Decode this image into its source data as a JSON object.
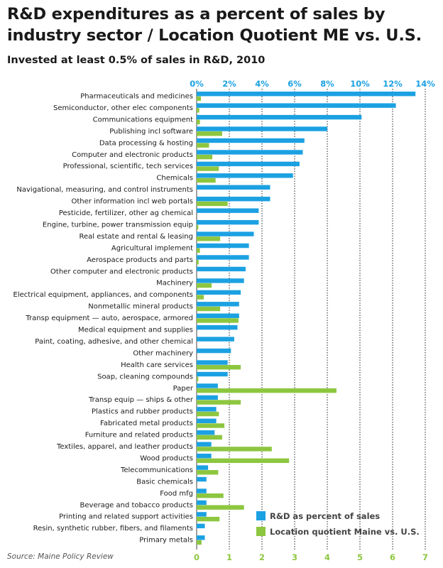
{
  "title": "R&D expenditures as a percent of sales by industry sector / Location Quotient ME vs. U.S.",
  "subtitle": "Invested at least 0.5% of sales in R&D, 2010",
  "source": "Source: Maine Policy Review",
  "colors": {
    "rd": "#1ba1e2",
    "lq": "#8dc63f",
    "top_axis": "#1ba1e2",
    "bottom_axis": "#8dc63f",
    "grid": "#222222"
  },
  "chart_data": {
    "type": "bar",
    "orientation": "horizontal",
    "grid": "vertical dotted",
    "legend_position": "bottom-right",
    "top_axis": {
      "ticks": [
        "0%",
        "2%",
        "4%",
        "6%",
        "8%",
        "10%",
        "12%",
        "14%"
      ],
      "range": [
        0,
        14
      ]
    },
    "bottom_axis": {
      "ticks": [
        "0",
        "1",
        "2",
        "3",
        "4",
        "5",
        "6",
        "7"
      ],
      "range": [
        0,
        7
      ]
    },
    "categories": [
      "Pharmaceuticals and medicines",
      "Semiconductor, other elec components",
      "Communications equipment",
      "Publishing incl software",
      "Data processing & hosting",
      "Computer and electronic products",
      "Professional, scientific, tech services",
      "Chemicals",
      "Navigational, measuring, and control instruments",
      "Other information incl web portals",
      "Pesticide, fertilizer, other ag chemical",
      "Engine, turbine, power transmission equip",
      "Real estate and rental & leasing",
      "Agricultural implement",
      "Aerospace products and parts",
      "Other computer and electronic products",
      "Machinery",
      "Electrical equipment, appliances, and components",
      "Nonmetallic mineral products",
      "Transp equipment — auto, aerospace, armored",
      "Medical equipment and supplies",
      "Paint, coating, adhesive, and other chemical",
      "Other machinery",
      "Health care services",
      "Soap, cleaning compounds",
      "Paper",
      "Transp equip — ships & other",
      "Plastics and rubber products",
      "Fabricated metal products",
      "Furniture and related products",
      "Textiles, apparel, and leather products",
      "Wood products",
      "Telecommunications",
      "Basic chemicals",
      "Food mfg",
      "Beverage and tobacco products",
      "Printing and related support activities",
      "Resin, synthetic rubber, fibers, and filaments",
      "Primary metals"
    ],
    "series": [
      {
        "name": "R&D as percent of sales",
        "axis": "top",
        "unit": "%",
        "values": [
          13.4,
          12.2,
          10.1,
          8.0,
          6.6,
          6.5,
          6.3,
          5.9,
          4.5,
          4.5,
          3.8,
          3.8,
          3.5,
          3.2,
          3.2,
          3.0,
          2.9,
          2.7,
          2.6,
          2.6,
          2.5,
          2.3,
          2.1,
          1.9,
          1.9,
          1.3,
          1.3,
          1.2,
          1.2,
          1.1,
          0.9,
          0.9,
          0.7,
          0.6,
          0.6,
          0.6,
          0.6,
          0.5,
          0.5
        ]
      },
      {
        "name": "Location quotient Maine vs. U.S.",
        "axis": "bottom",
        "values": [
          0.13,
          0.08,
          0.1,
          0.78,
          0.38,
          0.48,
          0.68,
          0.58,
          0.0,
          0.95,
          0.0,
          0.05,
          0.72,
          0.1,
          0.06,
          0.0,
          0.46,
          0.22,
          0.72,
          1.28,
          0.0,
          0.0,
          0.0,
          1.35,
          0.05,
          4.28,
          1.35,
          0.68,
          0.85,
          0.78,
          2.3,
          2.83,
          0.66,
          0.0,
          0.82,
          1.45,
          0.7,
          0.0,
          0.15
        ]
      }
    ]
  }
}
